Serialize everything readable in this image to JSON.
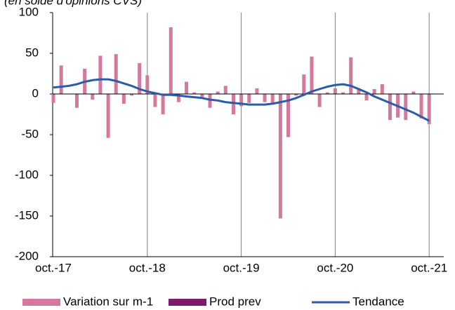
{
  "chart_data": {
    "type": "bar",
    "subtitle": "(en solde d'opinions CVS)",
    "categories": [
      "oct.-17",
      null,
      null,
      null,
      null,
      null,
      null,
      null,
      null,
      null,
      null,
      null,
      "oct.-18",
      null,
      null,
      null,
      null,
      null,
      null,
      null,
      null,
      null,
      null,
      null,
      "oct.-19",
      null,
      null,
      null,
      null,
      null,
      null,
      null,
      null,
      null,
      null,
      null,
      "oct.-20",
      null,
      null,
      null,
      null,
      null,
      null,
      null,
      null,
      null,
      null,
      null,
      "oct.-21"
    ],
    "series": [
      {
        "name": "Variation sur m-1",
        "color": "#d4789e",
        "kind": "bar",
        "values": [
          -11,
          35,
          0,
          -17,
          31,
          -7,
          47,
          -54,
          49,
          -12,
          -2,
          38,
          23,
          -16,
          -25,
          82,
          -10,
          15,
          2,
          -5,
          -17,
          3,
          10,
          -25,
          -15,
          -11,
          7,
          -10,
          -13,
          -153,
          -53,
          -2,
          24,
          46,
          -16,
          2,
          7,
          2,
          45,
          7,
          -8,
          6,
          12,
          -32,
          -29,
          -32,
          3,
          -30,
          -37
        ]
      },
      {
        "name": "Prod prev",
        "color": "#7b1a6e",
        "kind": "bar",
        "values": [
          null,
          null,
          null,
          null,
          null,
          null,
          null,
          null,
          null,
          null,
          null,
          null,
          null,
          null,
          null,
          null,
          null,
          null,
          null,
          null,
          null,
          null,
          null,
          null,
          null,
          null,
          null,
          null,
          null,
          null,
          null,
          null,
          null,
          null,
          null,
          null,
          null,
          null,
          null,
          null,
          null,
          null,
          null,
          null,
          null,
          null,
          null,
          null,
          null
        ]
      },
      {
        "name": "Tendance",
        "color": "#2a5ca8",
        "kind": "line",
        "values": [
          8,
          9,
          10,
          12,
          15,
          17,
          18,
          18,
          16,
          13,
          10,
          6,
          3,
          1,
          -1,
          -1,
          -2,
          -3,
          -4,
          -5,
          -7,
          -8,
          -10,
          -11,
          -12,
          -13,
          -13,
          -13,
          -12,
          -10,
          -8,
          -5,
          -1,
          3,
          6,
          9,
          11,
          12,
          10,
          6,
          2,
          -3,
          -7,
          -11,
          -15,
          -19,
          -23,
          -28,
          -33
        ]
      }
    ],
    "ylim": [
      -200,
      100
    ],
    "yticks": [
      -200,
      -150,
      -100,
      -50,
      0,
      50,
      100
    ]
  }
}
